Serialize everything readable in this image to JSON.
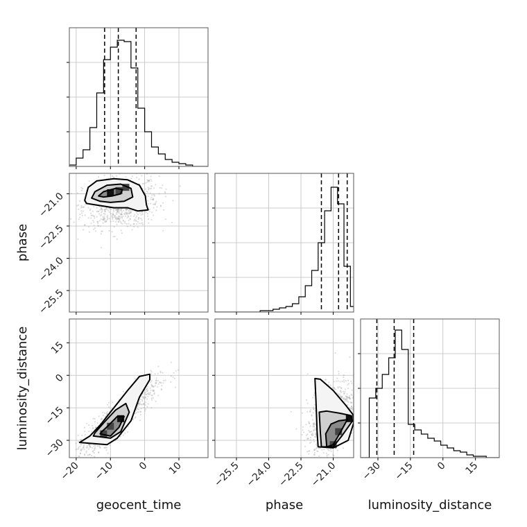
{
  "chart_data": {
    "type": "corner",
    "parameters": [
      "geocent_time",
      "phase",
      "luminosity_distance"
    ],
    "axis_labels": {
      "x": [
        "geocent_time",
        "phase",
        "luminosity_distance"
      ],
      "y": [
        "phase",
        "luminosity_distance"
      ]
    },
    "ranges": {
      "geocent_time": [
        -22,
        18.5
      ],
      "phase": [
        -26.5,
        -20.05
      ],
      "luminosity_distance": [
        -38,
        26
      ]
    },
    "ticks": {
      "geocent_time": [
        -20,
        -10,
        0,
        10
      ],
      "phase": [
        -25.5,
        -24.0,
        -22.5,
        -21.0
      ],
      "luminosity_distance": [
        -30,
        -15,
        0,
        15
      ]
    },
    "tick_labels": {
      "geocent_time": [
        "−20",
        "−10",
        "0",
        "10"
      ],
      "phase": [
        "−25.5",
        "−24.0",
        "−22.5",
        "−21.0"
      ],
      "luminosity_distance": [
        "−30",
        "−15",
        "0",
        "15"
      ]
    },
    "histograms": {
      "geocent_time": {
        "bin_edges": [
          -22,
          -20,
          -18,
          -16,
          -14,
          -12,
          -10,
          -8,
          -6,
          -4,
          -2,
          0,
          2,
          4,
          6,
          8,
          10,
          12,
          14,
          16,
          18.5
        ],
        "counts": [
          0.01,
          0.06,
          0.12,
          0.28,
          0.53,
          0.77,
          0.86,
          0.91,
          0.9,
          0.71,
          0.42,
          0.25,
          0.14,
          0.09,
          0.05,
          0.03,
          0.02,
          0.01,
          0.0,
          0.0
        ],
        "quantiles": [
          -11.7,
          -7.7,
          -2.5
        ]
      },
      "phase": {
        "bin_edges": [
          -26.5,
          -26.2,
          -25.9,
          -25.6,
          -25.3,
          -25.0,
          -24.7,
          -24.4,
          -24.1,
          -23.8,
          -23.5,
          -23.2,
          -22.9,
          -22.6,
          -22.3,
          -22.0,
          -21.7,
          -21.4,
          -21.1,
          -20.8,
          -20.5,
          -20.2,
          -20.05
        ],
        "counts": [
          0.0,
          0.0,
          0.0,
          0.0,
          0.0,
          0.0,
          0.0,
          0.01,
          0.01,
          0.02,
          0.03,
          0.04,
          0.06,
          0.11,
          0.19,
          0.3,
          0.5,
          0.73,
          0.9,
          0.78,
          0.33,
          0.04
        ],
        "quantiles": [
          -21.55,
          -20.75,
          -20.35
        ]
      },
      "luminosity_distance": {
        "bin_edges": [
          -38,
          -34,
          -31,
          -28,
          -25,
          -22,
          -19,
          -16,
          -13,
          -10,
          -7,
          -4,
          -1,
          2,
          5,
          8,
          11,
          14,
          17,
          20,
          23,
          26
        ],
        "counts": [
          0.0,
          0.43,
          0.5,
          0.6,
          0.72,
          0.92,
          0.78,
          0.24,
          0.2,
          0.17,
          0.14,
          0.12,
          0.09,
          0.07,
          0.05,
          0.04,
          0.02,
          0.01,
          0.01,
          0.0,
          0.0
        ],
        "quantiles": [
          -30.5,
          -22.5,
          -13.5
        ]
      }
    },
    "contours": {
      "geocent_time_vs_phase": [
        [
          [
            -17.5,
            -21.3
          ],
          [
            -16.5,
            -20.7
          ],
          [
            -14,
            -20.4
          ],
          [
            -9,
            -20.3
          ],
          [
            -5,
            -20.35
          ],
          [
            -1.5,
            -20.6
          ],
          [
            0.2,
            -21.1
          ],
          [
            0.5,
            -21.5
          ],
          [
            1,
            -21.75
          ],
          [
            -2,
            -21.8
          ],
          [
            -5,
            -21.65
          ],
          [
            -9,
            -21.65
          ],
          [
            -13,
            -21.55
          ],
          [
            -17,
            -21.45
          ]
        ],
        [
          [
            -15.5,
            -21.2
          ],
          [
            -14.5,
            -20.9
          ],
          [
            -11,
            -20.6
          ],
          [
            -7,
            -20.55
          ],
          [
            -4,
            -20.75
          ],
          [
            -3.5,
            -21.15
          ],
          [
            -6,
            -21.35
          ],
          [
            -10,
            -21.4
          ],
          [
            -13,
            -21.35
          ]
        ],
        [
          [
            -13.5,
            -21.1
          ],
          [
            -12,
            -20.9
          ],
          [
            -8.5,
            -20.75
          ],
          [
            -6.5,
            -20.8
          ],
          [
            -7,
            -21.0
          ],
          [
            -9.5,
            -21.1
          ],
          [
            -12,
            -21.15
          ]
        ]
      ],
      "geocent_time_vs_luminosity_distance": [
        [
          [
            -19,
            -31
          ],
          [
            -11,
            -32
          ],
          [
            -8,
            -29
          ],
          [
            -4,
            -21
          ],
          [
            -1.5,
            -10
          ],
          [
            1.5,
            -2
          ],
          [
            1.5,
            0.5
          ],
          [
            -1.5,
            -0.5
          ],
          [
            -5,
            -7
          ],
          [
            -9,
            -15
          ],
          [
            -13,
            -23
          ],
          [
            -16,
            -28
          ]
        ],
        [
          [
            -15,
            -28
          ],
          [
            -10,
            -29
          ],
          [
            -7,
            -26
          ],
          [
            -4.5,
            -17
          ],
          [
            -5.5,
            -13
          ],
          [
            -8.5,
            -16
          ],
          [
            -12,
            -22
          ],
          [
            -14.5,
            -26.5
          ]
        ],
        [
          [
            -13,
            -27
          ],
          [
            -10,
            -28
          ],
          [
            -7.5,
            -24
          ],
          [
            -6,
            -19
          ],
          [
            -8,
            -19
          ],
          [
            -10.5,
            -23
          ],
          [
            -12.5,
            -26
          ]
        ]
      ],
      "phase_vs_luminosity_distance": [
        [
          [
            -21.85,
            -1.5
          ],
          [
            -21.8,
            -12
          ],
          [
            -21.75,
            -26
          ],
          [
            -21.7,
            -33
          ],
          [
            -21.0,
            -33.5
          ],
          [
            -20.3,
            -30
          ],
          [
            -20.05,
            -22
          ],
          [
            -20.05,
            -18.5
          ],
          [
            -20.4,
            -14
          ],
          [
            -21.0,
            -7
          ],
          [
            -21.6,
            -1.8
          ]
        ],
        [
          [
            -21.65,
            -17
          ],
          [
            -21.6,
            -26
          ],
          [
            -21.55,
            -33
          ],
          [
            -21.0,
            -33
          ],
          [
            -20.6,
            -28
          ],
          [
            -20.1,
            -21
          ],
          [
            -20.2,
            -18.5
          ],
          [
            -20.7,
            -17.5
          ],
          [
            -21.3,
            -16.5
          ]
        ],
        [
          [
            -21.35,
            -27
          ],
          [
            -21.3,
            -33
          ],
          [
            -21.0,
            -32
          ],
          [
            -20.65,
            -26
          ],
          [
            -20.35,
            -20.5
          ],
          [
            -20.75,
            -21
          ],
          [
            -21.1,
            -22.5
          ]
        ]
      ]
    },
    "density_peaks": {
      "geocent_time_vs_phase": [
        [
          -10,
          -20.95
        ],
        [
          -7.5,
          -20.85
        ],
        [
          -5.5,
          -20.7
        ]
      ],
      "geocent_time_vs_luminosity_distance": [
        [
          -7,
          -20
        ],
        [
          -10,
          -23.5
        ],
        [
          -12,
          -27
        ]
      ],
      "phase_vs_luminosity_distance": [
        [
          -20.25,
          -20
        ],
        [
          -20.75,
          -26
        ],
        [
          -21.0,
          -32
        ]
      ]
    },
    "scatter_clouds": {
      "geocent_time_vs_phase": {
        "mean": [
          -7,
          -21.4
        ],
        "sd": [
          5.5,
          0.6
        ],
        "corr": 0.15,
        "extra_tail": false
      },
      "geocent_time_vs_luminosity_distance": {
        "mean": [
          -8,
          -20
        ],
        "sd": [
          6,
          9
        ],
        "corr": 0.9,
        "extra_tail": true
      },
      "phase_vs_luminosity_distance": {
        "mean": [
          -21.1,
          -20
        ],
        "sd": [
          0.55,
          9
        ],
        "corr": 0.45,
        "extra_tail": true
      }
    },
    "grid": true,
    "legend": "none"
  }
}
